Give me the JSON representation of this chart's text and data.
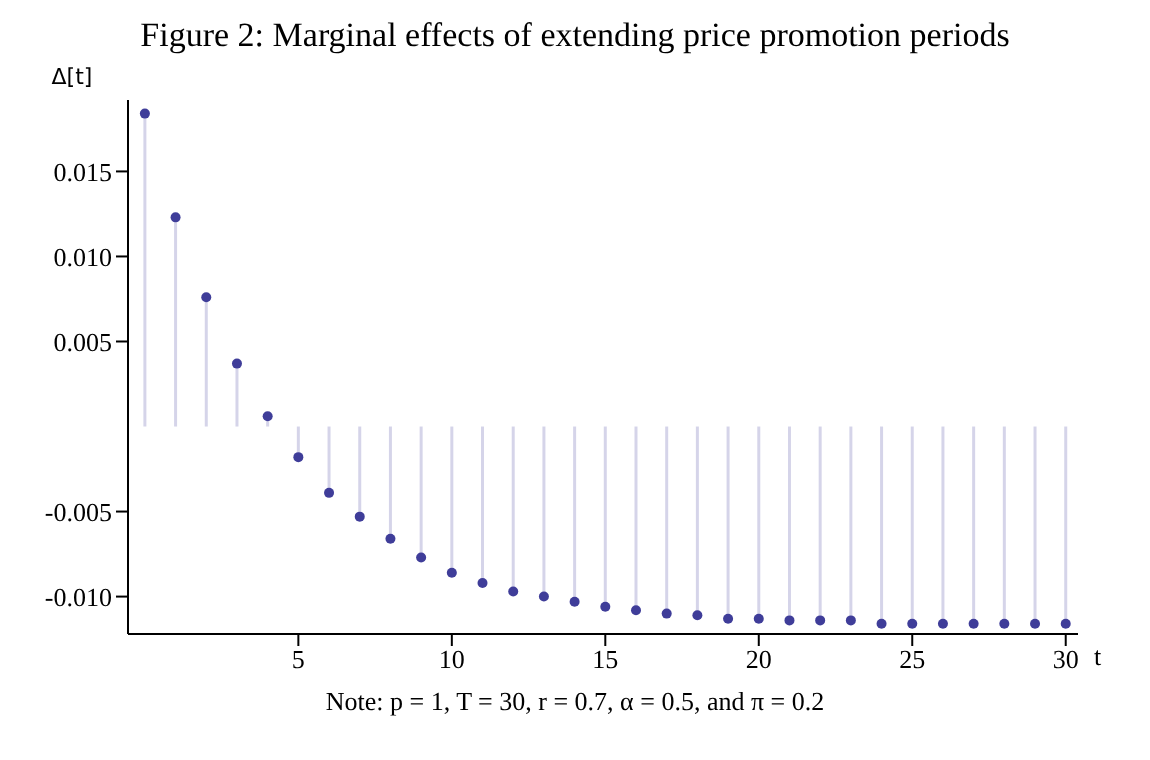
{
  "chart_data": {
    "type": "lollipop",
    "title": "Figure 2: Marginal effects of extending price promotion periods",
    "xlabel": "t",
    "ylabel": "Δ[t]",
    "annotations": [
      "Note: p = 1, T = 30, r = 0.7, α = 0.5, and π = 0.2"
    ],
    "x": [
      0,
      1,
      2,
      3,
      4,
      5,
      6,
      7,
      8,
      9,
      10,
      11,
      12,
      13,
      14,
      15,
      16,
      17,
      18,
      19,
      20,
      21,
      22,
      23,
      24,
      25,
      26,
      27,
      28,
      29,
      30
    ],
    "series": [
      {
        "color": "#3f3d99",
        "values": [
          0.0184,
          0.0123,
          0.0076,
          0.0037,
          0.0006,
          -0.0018,
          -0.0039,
          -0.0053,
          -0.0066,
          -0.0077,
          -0.0086,
          -0.0092,
          -0.0097,
          -0.01,
          -0.0103,
          -0.0106,
          -0.0108,
          -0.011,
          -0.0111,
          -0.0113,
          -0.0113,
          -0.0114,
          -0.0114,
          -0.0114,
          -0.0116,
          -0.0116,
          -0.0116,
          -0.0116,
          -0.0116,
          -0.0116,
          -0.0116
        ]
      }
    ],
    "xlim": [
      -0.55,
      30.4
    ],
    "xticks": [
      5,
      10,
      15,
      20,
      25,
      30
    ],
    "ylim": [
      -0.0122,
      0.0192
    ],
    "yticks": [
      {
        "value": -0.01,
        "label": "-0.010"
      },
      {
        "value": -0.005,
        "label": "-0.005"
      },
      {
        "value": 0.005,
        "label": "0.005"
      },
      {
        "value": 0.01,
        "label": "0.010"
      },
      {
        "value": 0.015,
        "label": "0.015"
      }
    ],
    "marker": "circle"
  }
}
